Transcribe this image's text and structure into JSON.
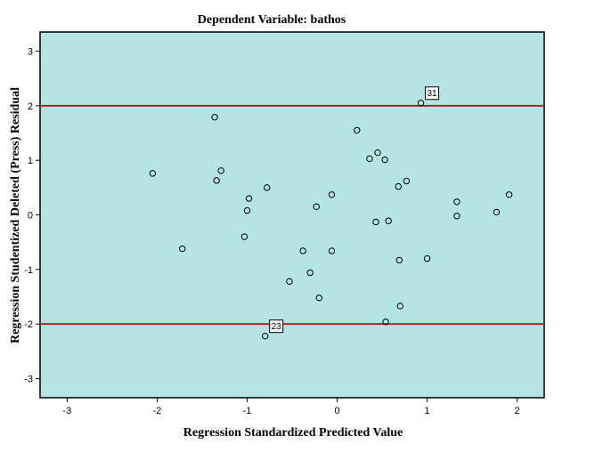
{
  "chart_data": {
    "type": "scatter",
    "title": "Dependent Variable: bathos",
    "xlabel": "Regression Standardized Predicted Value",
    "ylabel": "Regression Studentized Deleted (Press) Residual",
    "xlim": [
      -3.3,
      2.3
    ],
    "ylim": [
      -3.35,
      3.35
    ],
    "xticks": [
      -3,
      -2,
      -1,
      0,
      1,
      2
    ],
    "yticks": [
      -3,
      -2,
      -1,
      0,
      1,
      2,
      3
    ],
    "grid": false,
    "reference_lines": [
      {
        "axis": "y",
        "value": 2,
        "color": "#a52a2a"
      },
      {
        "axis": "y",
        "value": -2,
        "color": "#a52a2a"
      }
    ],
    "labeled_points": [
      {
        "label": "31",
        "x": 0.93,
        "y": 2.05
      },
      {
        "label": "23",
        "x": -0.8,
        "y": -2.22
      }
    ],
    "points": [
      {
        "x": -2.05,
        "y": 0.76
      },
      {
        "x": -1.72,
        "y": -0.62
      },
      {
        "x": -1.36,
        "y": 1.79
      },
      {
        "x": -1.34,
        "y": 0.63
      },
      {
        "x": -1.29,
        "y": 0.81
      },
      {
        "x": -1.03,
        "y": -0.4
      },
      {
        "x": -1.0,
        "y": 0.08
      },
      {
        "x": -0.98,
        "y": 0.3
      },
      {
        "x": -0.78,
        "y": 0.5
      },
      {
        "x": -0.8,
        "y": -2.22
      },
      {
        "x": -0.53,
        "y": -1.22
      },
      {
        "x": -0.38,
        "y": -0.66
      },
      {
        "x": -0.3,
        "y": -1.06
      },
      {
        "x": -0.23,
        "y": 0.15
      },
      {
        "x": -0.2,
        "y": -1.52
      },
      {
        "x": -0.06,
        "y": 0.37
      },
      {
        "x": -0.06,
        "y": -0.66
      },
      {
        "x": 0.22,
        "y": 1.55
      },
      {
        "x": 0.36,
        "y": 1.03
      },
      {
        "x": 0.43,
        "y": -0.13
      },
      {
        "x": 0.45,
        "y": 1.14
      },
      {
        "x": 0.53,
        "y": 1.01
      },
      {
        "x": 0.57,
        "y": -0.11
      },
      {
        "x": 0.54,
        "y": -1.96
      },
      {
        "x": 0.68,
        "y": 0.52
      },
      {
        "x": 0.69,
        "y": -0.83
      },
      {
        "x": 0.7,
        "y": -1.67
      },
      {
        "x": 0.77,
        "y": 0.62
      },
      {
        "x": 0.93,
        "y": 2.05
      },
      {
        "x": 1.0,
        "y": -0.8
      },
      {
        "x": 1.33,
        "y": 0.24
      },
      {
        "x": 1.33,
        "y": -0.02
      },
      {
        "x": 1.77,
        "y": 0.05
      },
      {
        "x": 1.91,
        "y": 0.37
      }
    ],
    "colors": {
      "plot_background": "#b5e4e5",
      "reference_line": "#a52a2a",
      "marker": "#000000"
    }
  }
}
